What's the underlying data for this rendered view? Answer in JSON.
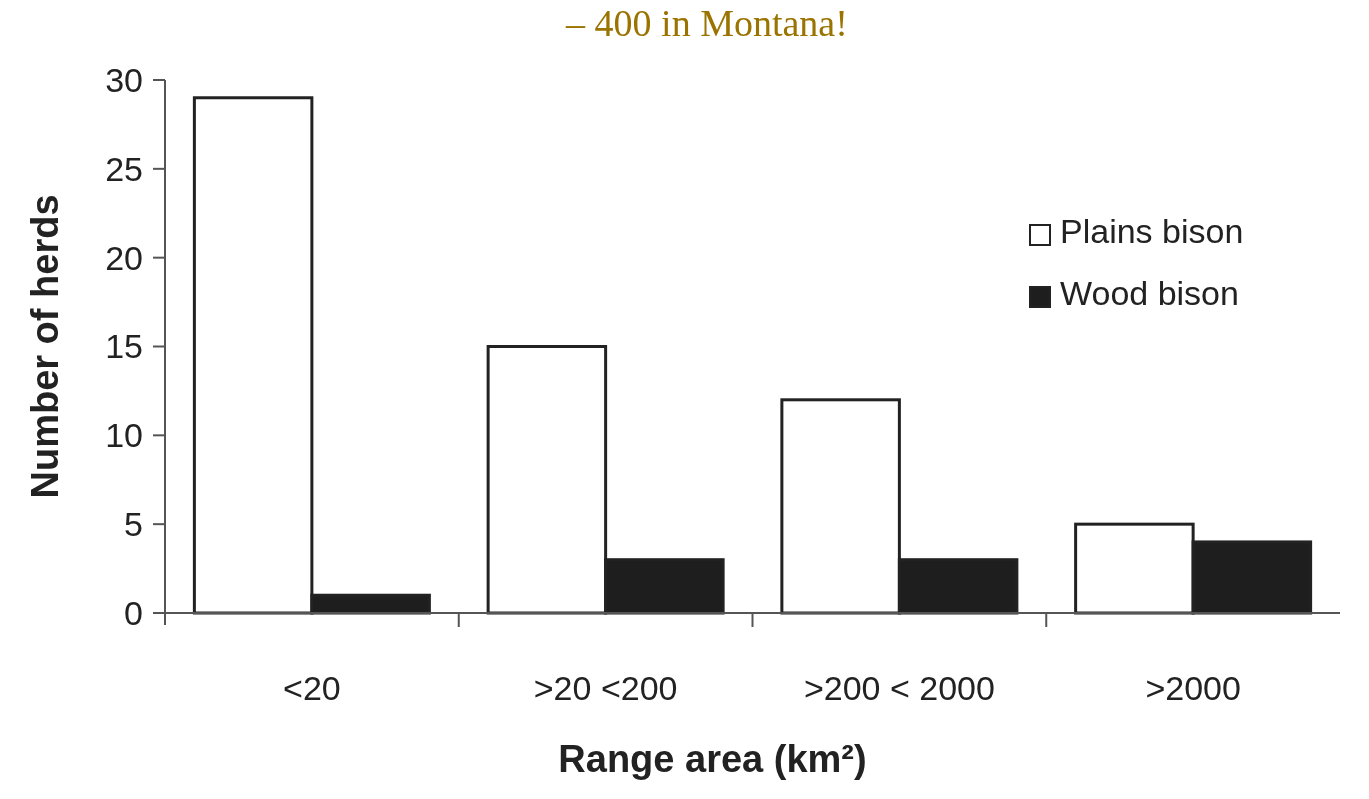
{
  "chart_data": {
    "type": "bar",
    "title": "– 400 in Montana!",
    "xlabel": "Range area (km²)",
    "ylabel": "Number of herds",
    "categories": [
      "<20",
      ">20 <200",
      ">200 < 2000",
      ">2000"
    ],
    "series": [
      {
        "name": "Plains bison",
        "color": "#ffffff",
        "values": [
          29,
          15,
          12,
          5
        ]
      },
      {
        "name": "Wood bison",
        "color": "#1e1e1e",
        "values": [
          1,
          3,
          3,
          4
        ]
      }
    ],
    "ylim": [
      0,
      30
    ],
    "yticks": [
      0,
      5,
      10,
      15,
      20,
      25,
      30
    ],
    "grid": false,
    "legend": "top right"
  }
}
